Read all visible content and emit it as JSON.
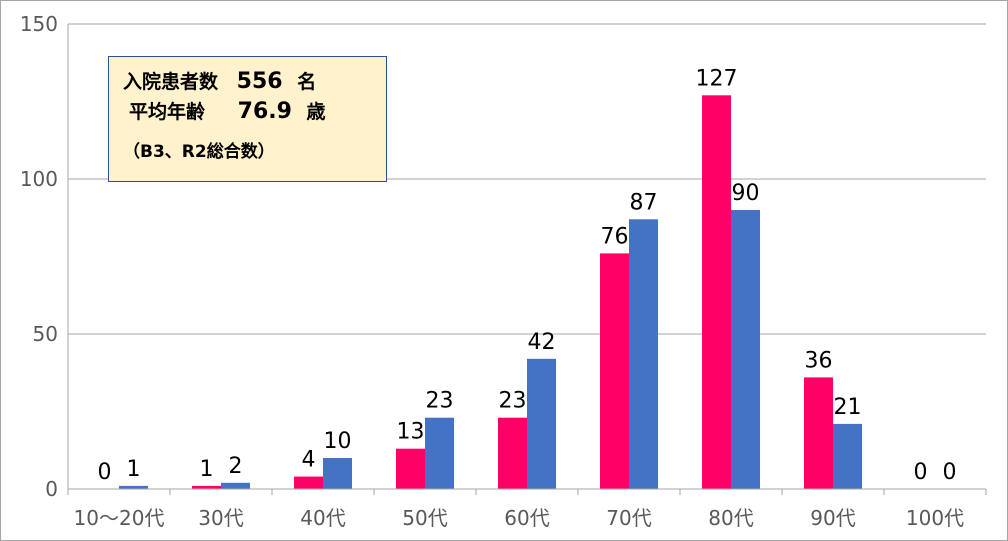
{
  "chart_data": {
    "type": "bar",
    "categories": [
      "10～20代",
      "30代",
      "40代",
      "50代",
      "60代",
      "70代",
      "80代",
      "90代",
      "100代"
    ],
    "series": [
      {
        "values": [
          0,
          1,
          4,
          13,
          23,
          76,
          127,
          36,
          0
        ],
        "color": "#ff0066"
      },
      {
        "values": [
          1,
          2,
          10,
          23,
          42,
          87,
          90,
          21,
          0
        ],
        "color": "#4472c4"
      }
    ],
    "ylim": [
      0,
      150
    ],
    "yticks": [
      0,
      50,
      100,
      150
    ],
    "grid": true,
    "legend": "none"
  },
  "info_box": {
    "patients_label": "入院患者数",
    "patients_value": "556",
    "patients_unit": "名",
    "age_label": "平均年齢",
    "age_value": "76.9",
    "age_unit": "歳",
    "note": "（B3、R2総合数）"
  }
}
